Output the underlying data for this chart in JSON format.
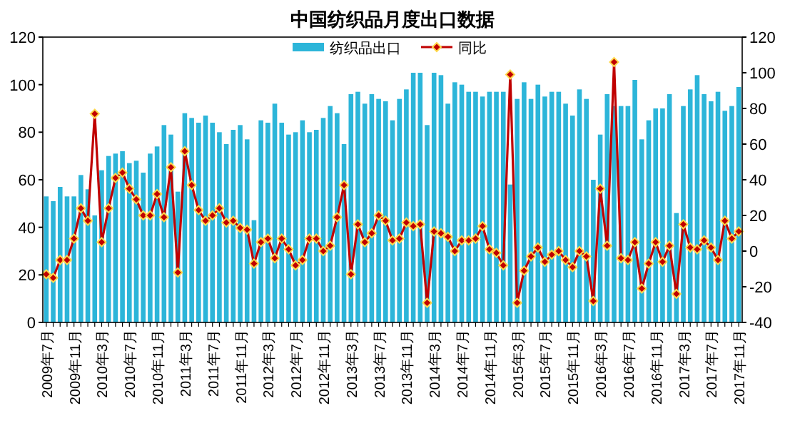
{
  "chart_data": {
    "type": "bar",
    "title": "中国纺织品月度出口数据",
    "categories": [
      "2009年7月",
      null,
      null,
      null,
      "2009年11月",
      null,
      null,
      null,
      "2010年3月",
      null,
      null,
      null,
      "2010年7月",
      null,
      null,
      null,
      "2010年11月",
      null,
      null,
      null,
      "2011年3月",
      null,
      null,
      null,
      "2011年7月",
      null,
      null,
      null,
      "2011年11月",
      null,
      null,
      null,
      "2012年3月",
      null,
      null,
      null,
      "2012年7月",
      null,
      null,
      null,
      "2012年11月",
      null,
      null,
      null,
      "2013年3月",
      null,
      null,
      null,
      "2013年7月",
      null,
      null,
      null,
      "2013年11月",
      null,
      null,
      null,
      "2014年3月",
      null,
      null,
      null,
      "2014年7月",
      null,
      null,
      null,
      "2014年11月",
      null,
      null,
      null,
      "2015年3月",
      null,
      null,
      null,
      "2015年7月",
      null,
      null,
      null,
      "2015年11月",
      null,
      null,
      null,
      "2016年3月",
      null,
      null,
      null,
      "2016年7月",
      null,
      null,
      null,
      "2016年11月",
      null,
      null,
      null,
      "2017年3月",
      null,
      null,
      null,
      "2017年7月",
      null,
      null,
      null,
      "2017年11月"
    ],
    "series": [
      {
        "name": "纺织品出口",
        "color": "#2cb5d9",
        "values": [
          53,
          51,
          57,
          53,
          53,
          62,
          56,
          45,
          64,
          70,
          71,
          72,
          67,
          68,
          63,
          71,
          74,
          83,
          79,
          55,
          88,
          86,
          84,
          87,
          84,
          80,
          75,
          81,
          83,
          77,
          43,
          85,
          84,
          92,
          84,
          79,
          80,
          85,
          80,
          81,
          86,
          91,
          88,
          75,
          96,
          97,
          92,
          96,
          94,
          93,
          85,
          94,
          98,
          105,
          105,
          83,
          105,
          104,
          92,
          101,
          100,
          97,
          97,
          95,
          97,
          97,
          97,
          58,
          94,
          101,
          94,
          100,
          95,
          97,
          97,
          92,
          87,
          98,
          94,
          60,
          79,
          96,
          91,
          91,
          91,
          102,
          77,
          85,
          90,
          90,
          96,
          46,
          91,
          98,
          104,
          96,
          93,
          97,
          89,
          91,
          99
        ]
      },
      {
        "name": "同比",
        "type": "line",
        "axis": "y2",
        "color": "#c00000",
        "values": [
          -13,
          -15,
          -5,
          -5,
          7,
          24,
          17,
          77,
          5,
          24,
          41,
          44,
          35,
          29,
          20,
          20,
          32,
          19,
          47,
          -12,
          56,
          37,
          23,
          17,
          20,
          24,
          16,
          17,
          13,
          12,
          -7,
          5,
          7,
          -4,
          7,
          1,
          -8,
          -5,
          7,
          7,
          0,
          3,
          19,
          37,
          -13,
          15,
          5,
          10,
          20,
          17,
          6,
          7,
          16,
          14,
          15,
          -29,
          11,
          10,
          8,
          0,
          6,
          6,
          7,
          14,
          1,
          -1,
          -8,
          99,
          -29,
          -11,
          -3,
          2,
          -6,
          -2,
          0,
          -5,
          -9,
          0,
          -3,
          -28,
          35,
          3,
          106,
          -4,
          -5,
          5,
          -21,
          -7,
          5,
          -6,
          3,
          -24,
          15,
          2,
          1,
          6,
          2,
          -5,
          17,
          7,
          11
        ]
      }
    ],
    "ylim": [
      0,
      120
    ],
    "yticks": [
      0,
      20,
      40,
      60,
      80,
      100,
      120
    ],
    "y2lim": [
      -40,
      120
    ],
    "y2ticks": [
      -40,
      -20,
      0,
      20,
      40,
      60,
      80,
      100,
      120
    ],
    "marker": "diamond",
    "legend": "top",
    "grid": false
  }
}
